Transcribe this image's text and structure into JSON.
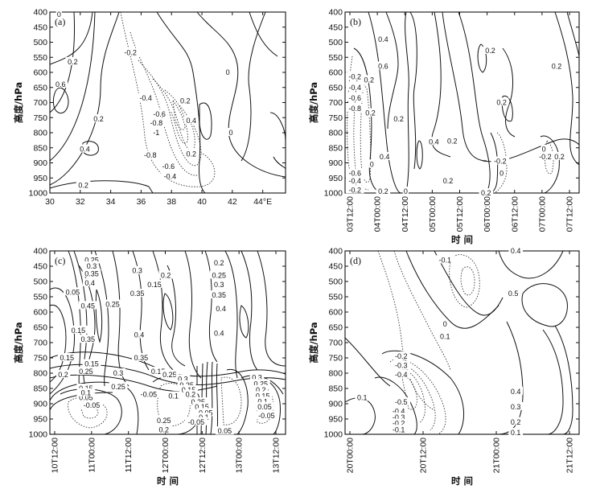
{
  "chart_data": [
    {
      "type": "contour",
      "panel_label": "(a)",
      "ylabel": "高度/hPa",
      "xlabel": "",
      "x_ticks": [
        "30",
        "32",
        "34",
        "36",
        "38",
        "40",
        "42",
        "44°E"
      ],
      "y_ticks": [
        "400",
        "450",
        "500",
        "550",
        "600",
        "650",
        "700",
        "750",
        "800",
        "850",
        "900",
        "950",
        "1000"
      ],
      "xlim": [
        30,
        45.5
      ],
      "ylim": [
        400,
        1000
      ],
      "contour_labels": [
        {
          "text": "0",
          "x": 30.6,
          "y": 408
        },
        {
          "text": "0.2",
          "x": 31.5,
          "y": 565
        },
        {
          "text": "0.6",
          "x": 30.7,
          "y": 640
        },
        {
          "text": "0.2",
          "x": 33.2,
          "y": 755
        },
        {
          "text": "0.4",
          "x": 32.3,
          "y": 855
        },
        {
          "text": "0.2",
          "x": 32.2,
          "y": 975
        },
        {
          "text": "-0.2",
          "x": 35.3,
          "y": 535
        },
        {
          "text": "-0.4",
          "x": 36.3,
          "y": 685
        },
        {
          "text": "-0.6",
          "x": 37.2,
          "y": 738
        },
        {
          "text": "-0.8",
          "x": 37.0,
          "y": 768
        },
        {
          "text": "-1",
          "x": 37.0,
          "y": 800
        },
        {
          "text": "-0.8",
          "x": 36.6,
          "y": 875
        },
        {
          "text": "-0.6",
          "x": 37.8,
          "y": 912
        },
        {
          "text": "-0.4",
          "x": 37.9,
          "y": 945
        },
        {
          "text": "0.2",
          "x": 38.9,
          "y": 695
        },
        {
          "text": "0.4",
          "x": 39.3,
          "y": 760
        },
        {
          "text": "0.2",
          "x": 39.3,
          "y": 870
        },
        {
          "text": "0",
          "x": 41.7,
          "y": 600
        },
        {
          "text": "0",
          "x": 41.9,
          "y": 800
        }
      ]
    },
    {
      "type": "contour",
      "panel_label": "(b)",
      "ylabel": "高度/hPa",
      "xlabel": "时 间",
      "x_ticks": [
        "03T12:00",
        "04T00:00",
        "04T12:00",
        "05T00:00",
        "05T12:00",
        "06T00:00",
        "06T12:00",
        "07T00:00",
        "07T12:00"
      ],
      "y_ticks": [
        "400",
        "450",
        "500",
        "550",
        "600",
        "650",
        "700",
        "750",
        "800",
        "850",
        "900",
        "950",
        "1000"
      ],
      "xlim": [
        0,
        8.3
      ],
      "ylim": [
        400,
        1000
      ],
      "contour_labels": [
        {
          "text": "0.4",
          "x": 1.35,
          "y": 490
        },
        {
          "text": "0.6",
          "x": 1.35,
          "y": 580
        },
        {
          "text": "0.2",
          "x": 0.85,
          "y": 625
        },
        {
          "text": "0.2",
          "x": 0.9,
          "y": 735
        },
        {
          "text": "0.2",
          "x": 1.9,
          "y": 755
        },
        {
          "text": "0.4",
          "x": 1.4,
          "y": 880
        },
        {
          "text": "0",
          "x": 0.95,
          "y": 905
        },
        {
          "text": "0",
          "x": 2.15,
          "y": 995
        },
        {
          "text": "0.2",
          "x": 1.35,
          "y": 995
        },
        {
          "text": "0.4",
          "x": 3.15,
          "y": 830
        },
        {
          "text": "0.2",
          "x": 3.8,
          "y": 828
        },
        {
          "text": "0.2",
          "x": 3.65,
          "y": 960
        },
        {
          "text": "0.2",
          "x": 5.15,
          "y": 528
        },
        {
          "text": "0.2",
          "x": 5.55,
          "y": 700
        },
        {
          "text": "-0.2",
          "x": 5.5,
          "y": 895
        },
        {
          "text": "0",
          "x": 5.55,
          "y": 935
        },
        {
          "text": "0.2",
          "x": 5.0,
          "y": 1000
        },
        {
          "text": "0.2",
          "x": 7.5,
          "y": 580
        },
        {
          "text": "0",
          "x": 7.05,
          "y": 855
        },
        {
          "text": "-0.2",
          "x": 7.1,
          "y": 880
        },
        {
          "text": "0.2",
          "x": 7.6,
          "y": 880
        },
        {
          "text": "-0.2",
          "x": 0.35,
          "y": 615
        },
        {
          "text": "-0.4",
          "x": 0.35,
          "y": 650
        },
        {
          "text": "-0.6",
          "x": 0.35,
          "y": 685
        },
        {
          "text": "-0.8",
          "x": 0.35,
          "y": 720
        },
        {
          "text": "-0.6",
          "x": 0.35,
          "y": 935
        },
        {
          "text": "-0.4",
          "x": 0.35,
          "y": 960
        },
        {
          "text": "-0.2",
          "x": 0.35,
          "y": 990
        }
      ]
    },
    {
      "type": "contour",
      "panel_label": "(c)",
      "ylabel": "高度/hPa",
      "xlabel": "时 间",
      "x_ticks": [
        "10T12:00",
        "11T00:00",
        "11T12:00",
        "12T00:00",
        "12T12:00",
        "13T00:00",
        "13T12:00"
      ],
      "y_ticks": [
        "400",
        "450",
        "500",
        "550",
        "600",
        "650",
        "700",
        "750",
        "800",
        "850",
        "900",
        "950",
        "1000"
      ],
      "xlim": [
        0,
        6.2
      ],
      "ylim": [
        400,
        1000
      ],
      "contour_labels": [
        {
          "text": "0.25",
          "x": 1.1,
          "y": 430
        },
        {
          "text": "0.3",
          "x": 1.1,
          "y": 450
        },
        {
          "text": "0.35",
          "x": 1.1,
          "y": 475
        },
        {
          "text": "0.4",
          "x": 1.05,
          "y": 505
        },
        {
          "text": "0.05",
          "x": 0.6,
          "y": 535
        },
        {
          "text": "0.45",
          "x": 1.0,
          "y": 580
        },
        {
          "text": "0.15",
          "x": 0.75,
          "y": 660
        },
        {
          "text": "0.35",
          "x": 1.0,
          "y": 690
        },
        {
          "text": "0.25",
          "x": 1.65,
          "y": 575
        },
        {
          "text": "0.3",
          "x": 2.3,
          "y": 465
        },
        {
          "text": "0.35",
          "x": 2.3,
          "y": 540
        },
        {
          "text": "0.4",
          "x": 2.35,
          "y": 675
        },
        {
          "text": "0.35",
          "x": 2.4,
          "y": 750
        },
        {
          "text": "0.15",
          "x": 1.1,
          "y": 770
        },
        {
          "text": "0.25",
          "x": 0.95,
          "y": 795
        },
        {
          "text": "0.2",
          "x": 0.35,
          "y": 805
        },
        {
          "text": "0.15",
          "x": 0.45,
          "y": 750
        },
        {
          "text": "0.3",
          "x": 1.8,
          "y": 800
        },
        {
          "text": "0.25",
          "x": 1.8,
          "y": 845
        },
        {
          "text": "0.2",
          "x": 3.05,
          "y": 480
        },
        {
          "text": "0.15",
          "x": 2.75,
          "y": 510
        },
        {
          "text": "0.2",
          "x": 4.45,
          "y": 440
        },
        {
          "text": "0.25",
          "x": 4.45,
          "y": 480
        },
        {
          "text": "0.3",
          "x": 4.45,
          "y": 510
        },
        {
          "text": "0.35",
          "x": 4.45,
          "y": 545
        },
        {
          "text": "0.4",
          "x": 4.5,
          "y": 590
        },
        {
          "text": "0.4",
          "x": 4.45,
          "y": 670
        },
        {
          "text": "0.15",
          "x": 0.95,
          "y": 850
        },
        {
          "text": "0.05",
          "x": 0.95,
          "y": 880
        },
        {
          "text": "0.1",
          "x": 0.95,
          "y": 865
        },
        {
          "text": "-0.05",
          "x": 1.1,
          "y": 905
        },
        {
          "text": "0.15",
          "x": 2.85,
          "y": 795
        },
        {
          "text": "0.25",
          "x": 3.15,
          "y": 805
        },
        {
          "text": "0.3",
          "x": 3.5,
          "y": 820
        },
        {
          "text": "0.25",
          "x": 3.6,
          "y": 840
        },
        {
          "text": "0.15",
          "x": 3.65,
          "y": 855
        },
        {
          "text": "0.2",
          "x": 3.7,
          "y": 870
        },
        {
          "text": "0.25",
          "x": 3.9,
          "y": 895
        },
        {
          "text": "0.15",
          "x": 4.0,
          "y": 910
        },
        {
          "text": "0.05",
          "x": 4.1,
          "y": 930
        },
        {
          "text": "0.1",
          "x": 4.05,
          "y": 945
        },
        {
          "text": "-0.05",
          "x": 3.85,
          "y": 960
        },
        {
          "text": "-0.05",
          "x": 2.6,
          "y": 870
        },
        {
          "text": "0.1",
          "x": 3.25,
          "y": 875
        },
        {
          "text": "0.25",
          "x": 3.0,
          "y": 955
        },
        {
          "text": "0.2",
          "x": 3.0,
          "y": 985
        },
        {
          "text": "0.3",
          "x": 5.45,
          "y": 815
        },
        {
          "text": "0.25",
          "x": 5.55,
          "y": 835
        },
        {
          "text": "0.2",
          "x": 5.55,
          "y": 855
        },
        {
          "text": "0.15",
          "x": 5.6,
          "y": 875
        },
        {
          "text": "0.1",
          "x": 5.6,
          "y": 893
        },
        {
          "text": "0.05",
          "x": 5.65,
          "y": 910
        },
        {
          "text": "-0.05",
          "x": 5.7,
          "y": 940
        },
        {
          "text": "0.05",
          "x": 4.6,
          "y": 990
        }
      ]
    },
    {
      "type": "contour",
      "panel_label": "(d)",
      "ylabel": "高度/hPa",
      "xlabel": "时 间",
      "x_ticks": [
        "20T00:00",
        "20T12:00",
        "21T00:00",
        "21T12:00"
      ],
      "y_ticks": [
        "400",
        "450",
        "500",
        "550",
        "600",
        "650",
        "700",
        "750",
        "800",
        "850",
        "900",
        "950",
        "1000"
      ],
      "xlim": [
        0,
        4.8
      ],
      "ylim": [
        400,
        1000
      ],
      "contour_labels": [
        {
          "text": "-0.1",
          "x": 2.05,
          "y": 430
        },
        {
          "text": "0.4",
          "x": 3.5,
          "y": 400
        },
        {
          "text": "0.5",
          "x": 3.45,
          "y": 540
        },
        {
          "text": "0",
          "x": 2.05,
          "y": 640
        },
        {
          "text": "0.1",
          "x": 2.05,
          "y": 680
        },
        {
          "text": "-0.2",
          "x": 1.15,
          "y": 745
        },
        {
          "text": "-0.3",
          "x": 1.15,
          "y": 775
        },
        {
          "text": "-0.4",
          "x": 1.15,
          "y": 805
        },
        {
          "text": "-0.5",
          "x": 1.15,
          "y": 895
        },
        {
          "text": "-0.4",
          "x": 1.1,
          "y": 925
        },
        {
          "text": "-0.3",
          "x": 1.1,
          "y": 945
        },
        {
          "text": "-0.2",
          "x": 1.1,
          "y": 965
        },
        {
          "text": "-0.1",
          "x": 1.1,
          "y": 985
        },
        {
          "text": "0.1",
          "x": 0.35,
          "y": 880
        },
        {
          "text": "0.4",
          "x": 3.5,
          "y": 860
        },
        {
          "text": "0.3",
          "x": 3.5,
          "y": 910
        },
        {
          "text": "0.2",
          "x": 3.5,
          "y": 960
        },
        {
          "text": "0.1",
          "x": 3.5,
          "y": 995
        }
      ]
    }
  ]
}
